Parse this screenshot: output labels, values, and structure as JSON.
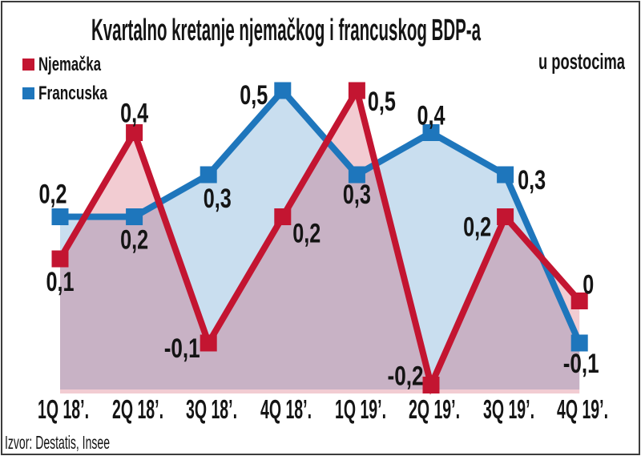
{
  "title": "Kvartalno kretanje njemačkog i francuskog BDP-a",
  "unit_label": "u postocima",
  "source": "Izvor: Destatis, Insee",
  "legend": {
    "items": [
      {
        "label": "Njemačka",
        "color": "#c31531"
      },
      {
        "label": "Francuska",
        "color": "#1e76bc"
      }
    ]
  },
  "chart_data": {
    "type": "line",
    "area_fill": true,
    "marker": "square",
    "grid": false,
    "legend_position": "top-left",
    "title": "Kvartalno kretanje njemačkog i francuskog BDP-a",
    "xlabel": "",
    "ylabel": "u postocima",
    "ylim": [
      -0.22,
      0.55
    ],
    "categories": [
      "1Q 18’.",
      "2Q 18’.",
      "3Q 18’.",
      "4Q 18’.",
      "1Q 19’.",
      "2Q 19’.",
      "3Q 19’.",
      "4Q 19’."
    ],
    "series": [
      {
        "name": "Njemačka",
        "color": "#c31531",
        "fill": "rgba(195,21,49,0.22)",
        "values": [
          0.1,
          0.4,
          -0.1,
          0.2,
          0.5,
          -0.2,
          0.2,
          0
        ],
        "labels": [
          "0,1",
          "0,4",
          "-0,1",
          "0,2",
          "0,5",
          "-0,2",
          "0,2",
          "0"
        ],
        "label_offsets": [
          [
            0,
            27
          ],
          [
            0,
            -26
          ],
          [
            -33,
            5
          ],
          [
            30,
            19
          ],
          [
            31,
            12
          ],
          [
            -32,
            -13
          ],
          [
            -35,
            11
          ],
          [
            11,
            -22
          ]
        ]
      },
      {
        "name": "Francuska",
        "color": "#1e76bc",
        "fill": "rgba(30,118,188,0.24)",
        "values": [
          0.2,
          0.2,
          0.3,
          0.5,
          0.3,
          0.4,
          0.3,
          -0.1
        ],
        "labels": [
          "0,2",
          "0,2",
          "0,3",
          "0,5",
          "0,3",
          "0,4",
          "0,3",
          "-0,1"
        ],
        "label_offsets": [
          [
            -9,
            -30
          ],
          [
            0,
            27
          ],
          [
            11,
            28
          ],
          [
            -36,
            4
          ],
          [
            0,
            23
          ],
          [
            0,
            -23
          ],
          [
            33,
            5
          ],
          [
            2,
            24
          ]
        ]
      }
    ]
  }
}
